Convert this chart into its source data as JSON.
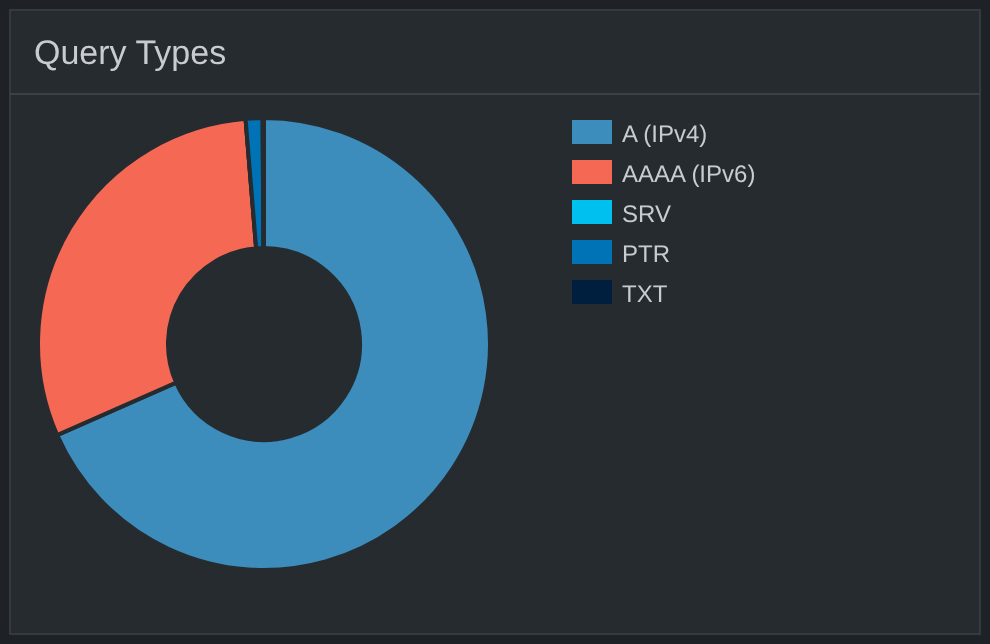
{
  "chart_data": {
    "type": "donut",
    "title": "Query Types",
    "categories": [
      "A (IPv4)",
      "AAAA (IPv6)",
      "SRV",
      "PTR",
      "TXT"
    ],
    "values": [
      68.4,
      30.3,
      null,
      1.2,
      0.1
    ],
    "colors": [
      "#3c8dbc",
      "#f56954",
      "#00c0ef",
      "#0073b7",
      "#001f3f"
    ],
    "legend": "right"
  }
}
